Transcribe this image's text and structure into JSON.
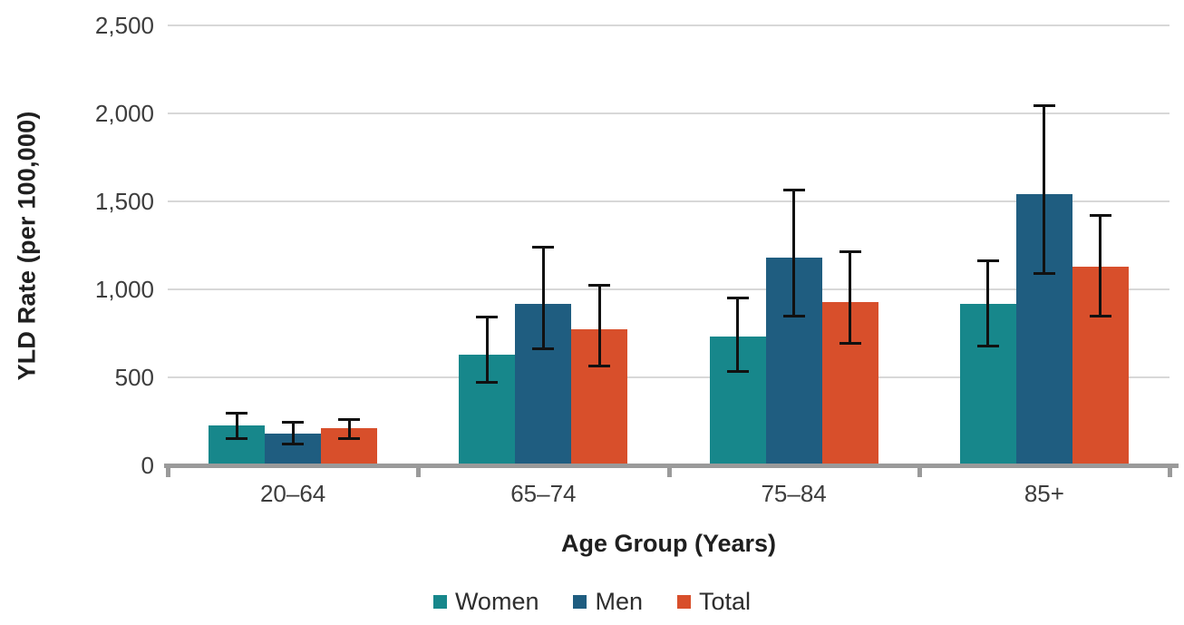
{
  "chart_data": {
    "type": "bar",
    "title": "",
    "xlabel": "Age Group (Years)",
    "ylabel": "YLD Rate (per 100,000)",
    "ylim": [
      0,
      2500
    ],
    "yticks": [
      0,
      500,
      1000,
      1500,
      2000,
      2500
    ],
    "grid": true,
    "legend_position": "bottom",
    "error_bars": true,
    "categories": [
      "20–64",
      "65–74",
      "75–84",
      "85+"
    ],
    "series": [
      {
        "name": "Women",
        "color": "#17878b",
        "values": [
          225,
          630,
          730,
          915
        ],
        "ci_low": [
          150,
          470,
          530,
          675
        ],
        "ci_high": [
          300,
          845,
          955,
          1165
        ]
      },
      {
        "name": "Men",
        "color": "#1f5d80",
        "values": [
          180,
          915,
          1180,
          1540
        ],
        "ci_low": [
          120,
          660,
          845,
          1090
        ],
        "ci_high": [
          250,
          1240,
          1565,
          2045
        ]
      },
      {
        "name": "Total",
        "color": "#d84f2b",
        "values": [
          210,
          775,
          930,
          1130
        ],
        "ci_low": [
          150,
          560,
          690,
          845
        ],
        "ci_high": [
          265,
          1025,
          1215,
          1425
        ]
      }
    ]
  },
  "colors": {
    "axis_line": "#9a9a9a",
    "gridline": "#d8d8d8",
    "error_bar": "#111111",
    "text": "#3d3d3d"
  }
}
